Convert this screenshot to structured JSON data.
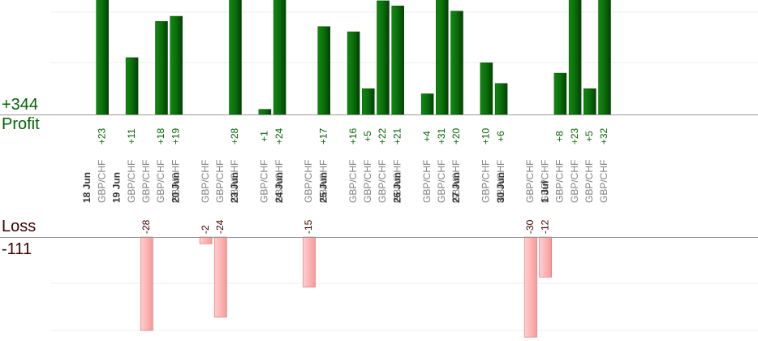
{
  "summary": {
    "profit_total": "+344",
    "profit_label": "Profit",
    "loss_label": "Loss",
    "loss_total": "-111"
  },
  "colors": {
    "profit_bar": "#0b6e0b",
    "profit_bar_edge": "#044004",
    "profit_text": "#006400",
    "loss_bar": "#ffb4b4",
    "loss_bar_edge": "#e07a7a",
    "loss_text": "#3d0000",
    "instrument_text": "#808080",
    "date_text": "#333333",
    "gridline": "#eeeeee",
    "axis": "#999999"
  },
  "chart_data": {
    "type": "bar",
    "profit_ylim": [
      0,
      30
    ],
    "loss_ylim": [
      0,
      28
    ],
    "dates": [
      {
        "label": "18 Jun",
        "slot": 0
      },
      {
        "label": "19 Jun",
        "slot": 2
      },
      {
        "label": "20 Jun",
        "slot": 6
      },
      {
        "label": "23 Jun",
        "slot": 10
      },
      {
        "label": "24 Jun",
        "slot": 13
      },
      {
        "label": "25 Jun",
        "slot": 16
      },
      {
        "label": "26 Jun",
        "slot": 21
      },
      {
        "label": "27 Jun",
        "slot": 25
      },
      {
        "label": "30 Jun",
        "slot": 28
      },
      {
        "label": "1 Jul",
        "slot": 31
      }
    ],
    "trades": [
      {
        "slot": 1,
        "instrument": "GBP/CHF",
        "value": 23,
        "label": "+23"
      },
      {
        "slot": 3,
        "instrument": "GBP/CHF",
        "value": 11,
        "label": "+11"
      },
      {
        "slot": 4,
        "instrument": "GBP/CHF",
        "value": -28,
        "label": "-28"
      },
      {
        "slot": 5,
        "instrument": "GBP/CHF",
        "value": 18,
        "label": "+18"
      },
      {
        "slot": 6,
        "instrument": "GBP/CHF",
        "value": 19,
        "label": "+19"
      },
      {
        "slot": 8,
        "instrument": "GBP/CHF",
        "value": -2,
        "label": "-2"
      },
      {
        "slot": 9,
        "instrument": "GBP/CHF",
        "value": -24,
        "label": "-24"
      },
      {
        "slot": 10,
        "instrument": "GBP/CHF",
        "value": 28,
        "label": "+28"
      },
      {
        "slot": 12,
        "instrument": "GBP/CHF",
        "value": 1,
        "label": "+1"
      },
      {
        "slot": 13,
        "instrument": "GBP/CHF",
        "value": 24,
        "label": "+24"
      },
      {
        "slot": 15,
        "instrument": "GBP/CHF",
        "value": -15,
        "label": "-15"
      },
      {
        "slot": 16,
        "instrument": "GBP/CHF",
        "value": 17,
        "label": "+17"
      },
      {
        "slot": 18,
        "instrument": "GBP/CHF",
        "value": 16,
        "label": "+16"
      },
      {
        "slot": 19,
        "instrument": "GBP/CHF",
        "value": 5,
        "label": "+5"
      },
      {
        "slot": 20,
        "instrument": "GBP/CHF",
        "value": 22,
        "label": "+22"
      },
      {
        "slot": 21,
        "instrument": "GBP/CHF",
        "value": 21,
        "label": "+21"
      },
      {
        "slot": 23,
        "instrument": "GBP/CHF",
        "value": 4,
        "label": "+4"
      },
      {
        "slot": 24,
        "instrument": "GBP/CHF",
        "value": 31,
        "label": "+31"
      },
      {
        "slot": 25,
        "instrument": "GBP/CHF",
        "value": 20,
        "label": "+20"
      },
      {
        "slot": 27,
        "instrument": "GBP/CHF",
        "value": 10,
        "label": "+10"
      },
      {
        "slot": 28,
        "instrument": "GBP/CHF",
        "value": 6,
        "label": "+6"
      },
      {
        "slot": 30,
        "instrument": "GBP/CHF",
        "value": -30,
        "label": "-30"
      },
      {
        "slot": 31,
        "instrument": "GBP/CHF",
        "value": -12,
        "label": "-12"
      },
      {
        "slot": 32,
        "instrument": "GBP/CHF",
        "value": 8,
        "label": "+8"
      },
      {
        "slot": 33,
        "instrument": "GBP/CHF",
        "value": 23,
        "label": "+23"
      },
      {
        "slot": 34,
        "instrument": "GBP/CHF",
        "value": 5,
        "label": "+5"
      },
      {
        "slot": 35,
        "instrument": "GBP/CHF",
        "value": 32,
        "label": "+32"
      }
    ]
  }
}
